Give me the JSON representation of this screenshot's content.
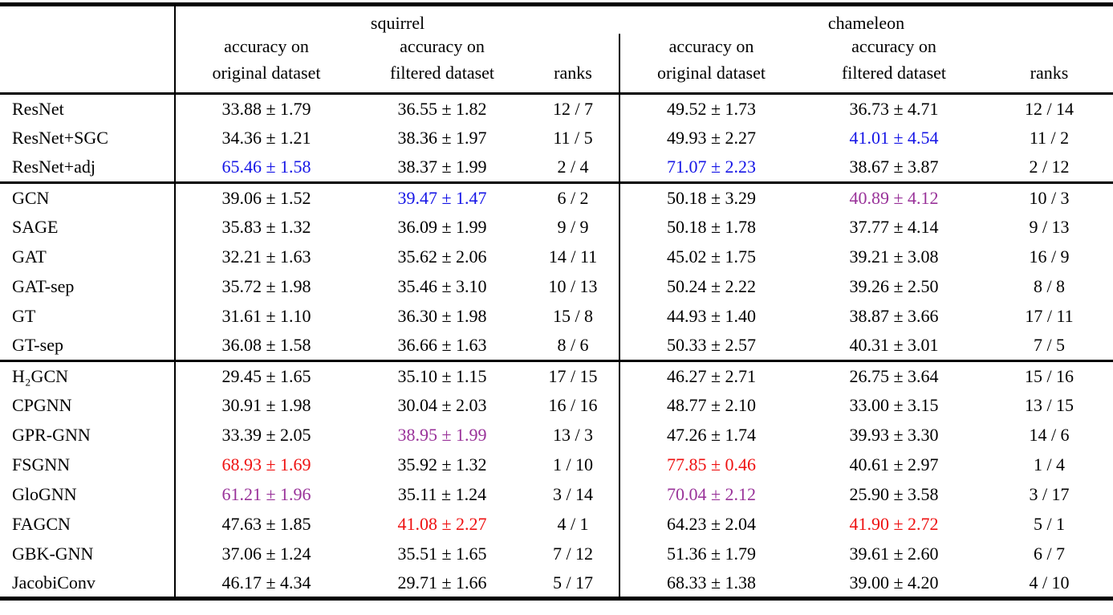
{
  "colors": {
    "first": "#ee1111",
    "second": "#1515e6",
    "third": "#993299",
    "text": "#000000"
  },
  "header": {
    "groups": [
      "squirrel",
      "chameleon"
    ],
    "acc_on": "accuracy on",
    "original": "original dataset",
    "filtered": "filtered dataset",
    "ranks": "ranks"
  },
  "table": {
    "blocks": [
      {
        "rows": [
          {
            "model": "ResNet",
            "cells": [
              {
                "v": "33.88 ± 1.79"
              },
              {
                "v": "36.55 ± 1.82"
              },
              {
                "v": "12 / 7"
              },
              {
                "v": "49.52 ± 1.73"
              },
              {
                "v": "36.73 ± 4.71"
              },
              {
                "v": "12 / 14"
              }
            ]
          },
          {
            "model": "ResNet+SGC",
            "cells": [
              {
                "v": "34.36 ± 1.21"
              },
              {
                "v": "38.36 ± 1.97"
              },
              {
                "v": "11 / 5"
              },
              {
                "v": "49.93 ± 2.27"
              },
              {
                "v": "41.01 ± 4.54",
                "c": "second"
              },
              {
                "v": "11 / 2"
              }
            ]
          },
          {
            "model": "ResNet+adj",
            "cells": [
              {
                "v": "65.46 ± 1.58",
                "c": "second"
              },
              {
                "v": "38.37 ± 1.99"
              },
              {
                "v": "2 / 4"
              },
              {
                "v": "71.07 ± 2.23",
                "c": "second"
              },
              {
                "v": "38.67 ± 3.87"
              },
              {
                "v": "2 / 12"
              }
            ]
          }
        ]
      },
      {
        "rows": [
          {
            "model": "GCN",
            "cells": [
              {
                "v": "39.06 ± 1.52"
              },
              {
                "v": "39.47 ± 1.47",
                "c": "second"
              },
              {
                "v": "6 / 2"
              },
              {
                "v": "50.18 ± 3.29"
              },
              {
                "v": "40.89 ± 4.12",
                "c": "third"
              },
              {
                "v": "10 / 3"
              }
            ]
          },
          {
            "model": "SAGE",
            "cells": [
              {
                "v": "35.83 ± 1.32"
              },
              {
                "v": "36.09 ± 1.99"
              },
              {
                "v": "9 / 9"
              },
              {
                "v": "50.18 ± 1.78"
              },
              {
                "v": "37.77 ± 4.14"
              },
              {
                "v": "9 / 13"
              }
            ]
          },
          {
            "model": "GAT",
            "cells": [
              {
                "v": "32.21 ± 1.63"
              },
              {
                "v": "35.62 ± 2.06"
              },
              {
                "v": "14 / 11"
              },
              {
                "v": "45.02 ± 1.75"
              },
              {
                "v": "39.21 ± 3.08"
              },
              {
                "v": "16 / 9"
              }
            ]
          },
          {
            "model": "GAT-sep",
            "cells": [
              {
                "v": "35.72 ± 1.98"
              },
              {
                "v": "35.46 ± 3.10"
              },
              {
                "v": "10 / 13"
              },
              {
                "v": "50.24 ± 2.22"
              },
              {
                "v": "39.26 ± 2.50"
              },
              {
                "v": "8 / 8"
              }
            ]
          },
          {
            "model": "GT",
            "cells": [
              {
                "v": "31.61 ± 1.10"
              },
              {
                "v": "36.30 ± 1.98"
              },
              {
                "v": "15 / 8"
              },
              {
                "v": "44.93 ± 1.40"
              },
              {
                "v": "38.87 ± 3.66"
              },
              {
                "v": "17 / 11"
              }
            ]
          },
          {
            "model": "GT-sep",
            "cells": [
              {
                "v": "36.08 ± 1.58"
              },
              {
                "v": "36.66 ± 1.63"
              },
              {
                "v": "8 / 6"
              },
              {
                "v": "50.33 ± 2.57"
              },
              {
                "v": "40.31 ± 3.01"
              },
              {
                "v": "7 / 5"
              }
            ]
          }
        ]
      },
      {
        "rows": [
          {
            "model": "H₂GCN",
            "cells": [
              {
                "v": "29.45 ± 1.65"
              },
              {
                "v": "35.10 ± 1.15"
              },
              {
                "v": "17 / 15"
              },
              {
                "v": "46.27 ± 2.71"
              },
              {
                "v": "26.75 ± 3.64"
              },
              {
                "v": "15 / 16"
              }
            ]
          },
          {
            "model": "CPGNN",
            "cells": [
              {
                "v": "30.91 ± 1.98"
              },
              {
                "v": "30.04 ± 2.03"
              },
              {
                "v": "16 / 16"
              },
              {
                "v": "48.77 ± 2.10"
              },
              {
                "v": "33.00 ± 3.15"
              },
              {
                "v": "13 / 15"
              }
            ]
          },
          {
            "model": "GPR-GNN",
            "cells": [
              {
                "v": "33.39 ± 2.05"
              },
              {
                "v": "38.95 ± 1.99",
                "c": "third"
              },
              {
                "v": "13 / 3"
              },
              {
                "v": "47.26 ± 1.74"
              },
              {
                "v": "39.93 ± 3.30"
              },
              {
                "v": "14 / 6"
              }
            ]
          },
          {
            "model": "FSGNN",
            "cells": [
              {
                "v": "68.93 ± 1.69",
                "c": "first"
              },
              {
                "v": "35.92 ± 1.32"
              },
              {
                "v": "1 / 10"
              },
              {
                "v": "77.85 ± 0.46",
                "c": "first"
              },
              {
                "v": "40.61 ± 2.97"
              },
              {
                "v": "1 / 4"
              }
            ]
          },
          {
            "model": "GloGNN",
            "cells": [
              {
                "v": "61.21 ± 1.96",
                "c": "third"
              },
              {
                "v": "35.11 ± 1.24"
              },
              {
                "v": "3 / 14"
              },
              {
                "v": "70.04 ± 2.12",
                "c": "third"
              },
              {
                "v": "25.90 ± 3.58"
              },
              {
                "v": "3 / 17"
              }
            ]
          },
          {
            "model": "FAGCN",
            "cells": [
              {
                "v": "47.63 ± 1.85"
              },
              {
                "v": "41.08 ± 2.27",
                "c": "first"
              },
              {
                "v": "4 / 1"
              },
              {
                "v": "64.23 ± 2.04"
              },
              {
                "v": "41.90 ± 2.72",
                "c": "first"
              },
              {
                "v": "5 / 1"
              }
            ]
          },
          {
            "model": "GBK-GNN",
            "cells": [
              {
                "v": "37.06 ± 1.24"
              },
              {
                "v": "35.51 ± 1.65"
              },
              {
                "v": "7 / 12"
              },
              {
                "v": "51.36 ± 1.79"
              },
              {
                "v": "39.61 ± 2.60"
              },
              {
                "v": "6 / 7"
              }
            ]
          },
          {
            "model": "JacobiConv",
            "cells": [
              {
                "v": "46.17 ± 4.34"
              },
              {
                "v": "29.71 ± 1.66"
              },
              {
                "v": "5 / 17"
              },
              {
                "v": "68.33 ± 1.38"
              },
              {
                "v": "39.00 ± 4.20"
              },
              {
                "v": "4 / 10"
              }
            ]
          }
        ]
      }
    ]
  }
}
